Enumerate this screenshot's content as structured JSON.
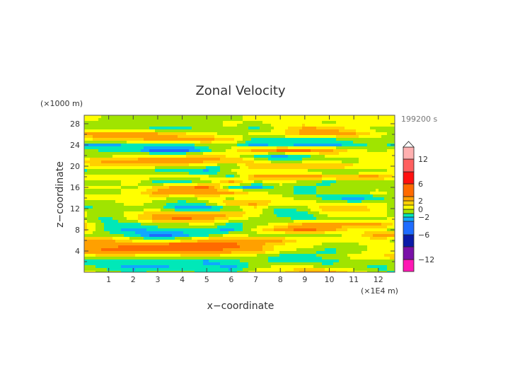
{
  "chart_data": {
    "type": "heatmap",
    "title": "Zonal Velocity",
    "xlabel": "x−coordinate",
    "ylabel": "z−coordinate",
    "x_unit": "(×1E4 m)",
    "y_unit": "(×1000 m)",
    "time_label": "199200 s",
    "xlim": [
      0,
      12.67
    ],
    "ylim": [
      0,
      29.6
    ],
    "x_ticks": [
      1,
      2,
      3,
      4,
      5,
      6,
      7,
      8,
      9,
      10,
      11,
      12
    ],
    "y_ticks_labeled": [
      4,
      8,
      12,
      16,
      20,
      24,
      28
    ],
    "y_ticks_minor": [
      2,
      6,
      10,
      14,
      18,
      22,
      26
    ],
    "x": [
      0,
      1,
      2,
      3,
      4,
      5,
      6,
      7,
      8,
      9,
      10,
      11,
      12,
      12.8
    ],
    "z": [
      29,
      28,
      27,
      26,
      25,
      24,
      23,
      22,
      21,
      20,
      19,
      18,
      17,
      16,
      15,
      14,
      13,
      12,
      11,
      10,
      9,
      8,
      7,
      6,
      5,
      4,
      3,
      2,
      1,
      0
    ],
    "values": [
      [
        1,
        -0.5,
        -0.5,
        -0.5,
        -0.5,
        -0.5,
        -0.5,
        0.5,
        0.5,
        0.5,
        0.5,
        0.5,
        0.5,
        0.5
      ],
      [
        -0.5,
        -0.5,
        -0.5,
        -0.5,
        -0.5,
        -0.5,
        0.5,
        -0.5,
        0.5,
        0.5,
        -0.5,
        0.5,
        0.5,
        0.5
      ],
      [
        -0.5,
        -0.5,
        -0.5,
        -1.5,
        -1.5,
        -0.5,
        -0.5,
        -1.5,
        0.5,
        2.5,
        2.5,
        0.5,
        -0.5,
        -0.5
      ],
      [
        2.5,
        3.5,
        3.5,
        2.5,
        1.5,
        0.5,
        -0.5,
        0.5,
        0.5,
        2.5,
        2.5,
        2.5,
        0.5,
        -0.5
      ],
      [
        0.5,
        1.5,
        1.5,
        2.5,
        2.5,
        2.5,
        1.5,
        -1.5,
        -1.5,
        -1.5,
        -1.5,
        -0.5,
        -0.5,
        -0.5
      ],
      [
        -2.5,
        -2.5,
        -1.5,
        -1.5,
        -1.5,
        -0.5,
        -0.5,
        -2.5,
        -1.5,
        -2.5,
        -2.5,
        -1.5,
        -0.5,
        -1.5
      ],
      [
        -0.5,
        -1.5,
        -1.5,
        -4,
        -4,
        -1.5,
        0.5,
        2.5,
        3.5,
        3.5,
        2.5,
        0.5,
        -0.5,
        0.5
      ],
      [
        -0.5,
        -0.5,
        0.5,
        0.5,
        0.5,
        1.5,
        0.5,
        -1.5,
        -2.5,
        -1.5,
        0.5,
        0.5,
        0.5,
        0.5
      ],
      [
        1.5,
        2.5,
        2.5,
        3.5,
        3.5,
        2.5,
        2.5,
        0.5,
        -1.5,
        -0.5,
        -0.5,
        -0.5,
        0.5,
        0.5
      ],
      [
        0.5,
        1.5,
        0.5,
        0.5,
        0.5,
        -0.5,
        -1.5,
        2.5,
        2.5,
        2.5,
        2.5,
        1.5,
        0.5,
        0.5
      ],
      [
        -1.5,
        -0.5,
        -0.5,
        -1.5,
        -1.5,
        -2.5,
        0.5,
        -0.5,
        -0.5,
        -0.5,
        -1.5,
        -1.5,
        -0.5,
        0.5
      ],
      [
        0.5,
        0.5,
        0.5,
        0.5,
        0.5,
        0.5,
        -1.5,
        2.5,
        2.5,
        2.5,
        2.5,
        2.5,
        2.5,
        0.5
      ],
      [
        -0.5,
        -0.5,
        0.5,
        -1.5,
        -1.5,
        -0.5,
        2.5,
        -0.5,
        0.5,
        -0.5,
        -1.5,
        -0.5,
        -0.5,
        -0.5
      ],
      [
        0.5,
        0.5,
        -0.5,
        1.5,
        2.5,
        3.5,
        -1.5,
        -2.5,
        -0.5,
        -1.5,
        -0.5,
        -0.5,
        -0.5,
        -0.5
      ],
      [
        -0.5,
        -0.5,
        0.5,
        2.5,
        2.5,
        2.5,
        2.5,
        0.5,
        -0.5,
        -1.5,
        -0.5,
        -0.5,
        0.5,
        -0.5
      ],
      [
        0.5,
        0.5,
        0.5,
        0.5,
        -0.5,
        0.5,
        -0.5,
        0.5,
        0.5,
        -0.5,
        -1.5,
        -3,
        -1.5,
        -0.5
      ],
      [
        -0.5,
        -0.5,
        0.5,
        -0.5,
        -1.5,
        -0.5,
        2.5,
        2.5,
        0.5,
        0.5,
        0.5,
        -0.5,
        0.5,
        -0.5
      ],
      [
        -1.5,
        -0.5,
        -0.5,
        -0.5,
        -3,
        -3,
        -1.5,
        0.5,
        -1.5,
        -0.5,
        2.5,
        2.5,
        0.5,
        -0.5
      ],
      [
        0.5,
        -0.5,
        0.5,
        2.5,
        2.5,
        2.5,
        2.5,
        0.5,
        -1.5,
        -1.5,
        0.5,
        0.5,
        0.5,
        -0.5
      ],
      [
        -0.5,
        -1.5,
        0.5,
        2.5,
        3.5,
        2.5,
        0.5,
        -0.5,
        -0.5,
        -1.5,
        -0.5,
        -0.5,
        -0.5,
        0.5
      ],
      [
        1.5,
        -1.5,
        -1.5,
        -0.5,
        -0.5,
        0.5,
        -1.5,
        -0.5,
        0.5,
        2.5,
        2.5,
        2.5,
        2.5,
        0.5
      ],
      [
        1.5,
        -1.5,
        -2.5,
        -1.5,
        -1.5,
        -1.5,
        -2.5,
        0.5,
        2.5,
        3.5,
        2.5,
        0.5,
        0.5,
        -0.5
      ],
      [
        -0.5,
        -0.5,
        -1.5,
        -4,
        -2.5,
        -1.5,
        0.5,
        -0.5,
        -0.5,
        -0.5,
        -0.5,
        0.5,
        2.5,
        2.5
      ],
      [
        2.5,
        2.5,
        0.5,
        -0.5,
        0.5,
        2.5,
        2.5,
        2.5,
        2.5,
        0.5,
        0.5,
        0.5,
        0.5,
        -0.5
      ],
      [
        2.5,
        2.5,
        3.5,
        4.5,
        4.5,
        3.5,
        3.5,
        2.5,
        0.5,
        0.5,
        -0.5,
        -0.5,
        0.5,
        0.5
      ],
      [
        2.5,
        3.5,
        3.5,
        3.5,
        3.5,
        3.5,
        2.5,
        2.5,
        0.5,
        -0.5,
        -1.5,
        -0.5,
        0.5,
        0.5
      ],
      [
        0.5,
        0.5,
        0.5,
        -0.5,
        0.5,
        0.5,
        0.5,
        -0.5,
        -1.5,
        -1.5,
        -0.5,
        0.5,
        0.5,
        2.5
      ],
      [
        -1.5,
        -1.5,
        -1.5,
        -1.5,
        -1.5,
        -2.5,
        -1.5,
        -0.5,
        -1.5,
        -1.5,
        -1.5,
        -0.5,
        -0.5,
        -0.5
      ],
      [
        -0.5,
        -1.5,
        -2.5,
        -2.5,
        -1.5,
        -1.5,
        -2.5,
        -0.5,
        0.5,
        0.5,
        -0.5,
        -0.5,
        -1.5,
        -0.5
      ],
      [
        0.5,
        -0.5,
        -1.5,
        -0.5,
        -0.5,
        -1.5,
        -1.5,
        0.5,
        0.5,
        2.5,
        2.5,
        0.5,
        -0.5,
        -1.5
      ]
    ],
    "colorbar": {
      "labels": [
        "12",
        "6",
        "2",
        "0",
        "−2",
        "−6",
        "−12"
      ],
      "label_values": [
        12,
        6,
        2,
        0,
        -2,
        -6,
        -12
      ],
      "levels": [
        -15,
        -12,
        -9,
        -6,
        -3,
        -2,
        -1,
        0,
        1,
        2,
        3,
        6,
        9,
        12,
        15
      ],
      "colors": [
        "#ff18b4",
        "#7a10a8",
        "#0a1aa8",
        "#1e6cff",
        "#10a8ff",
        "#00e8b8",
        "#a0e400",
        "#ffff00",
        "#ffd000",
        "#ffa000",
        "#ff6a00",
        "#ff1010",
        "#ff6060",
        "#ffb0b0"
      ],
      "extend": "max"
    }
  }
}
